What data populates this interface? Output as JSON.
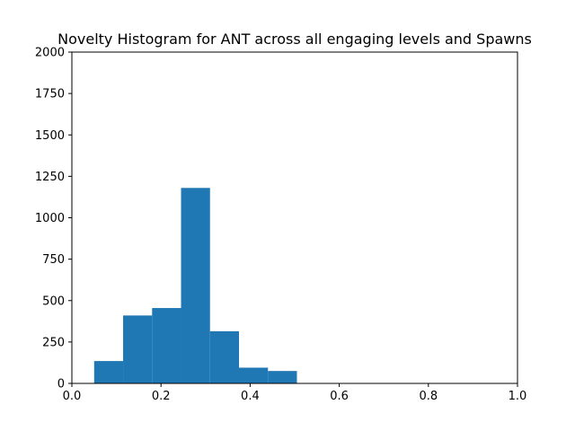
{
  "chart_data": {
    "type": "bar",
    "title": "Novelty Histogram for ANT across all engaging levels and Spawns",
    "xlabel": "",
    "ylabel": "",
    "xlim": [
      0.0,
      1.0
    ],
    "ylim": [
      0,
      2000
    ],
    "x_ticks": [
      "0.0",
      "0.2",
      "0.4",
      "0.6",
      "0.8",
      "1.0"
    ],
    "y_ticks": [
      "0",
      "250",
      "500",
      "750",
      "1000",
      "1250",
      "1500",
      "1750",
      "2000"
    ],
    "bins": [
      {
        "start": 0.05,
        "end": 0.115,
        "count": 135
      },
      {
        "start": 0.115,
        "end": 0.18,
        "count": 410
      },
      {
        "start": 0.18,
        "end": 0.245,
        "count": 455
      },
      {
        "start": 0.245,
        "end": 0.31,
        "count": 1180
      },
      {
        "start": 0.31,
        "end": 0.375,
        "count": 315
      },
      {
        "start": 0.375,
        "end": 0.44,
        "count": 95
      },
      {
        "start": 0.44,
        "end": 0.505,
        "count": 75
      }
    ],
    "bar_color": "#1f77b4",
    "grid": false,
    "legend": "none"
  }
}
